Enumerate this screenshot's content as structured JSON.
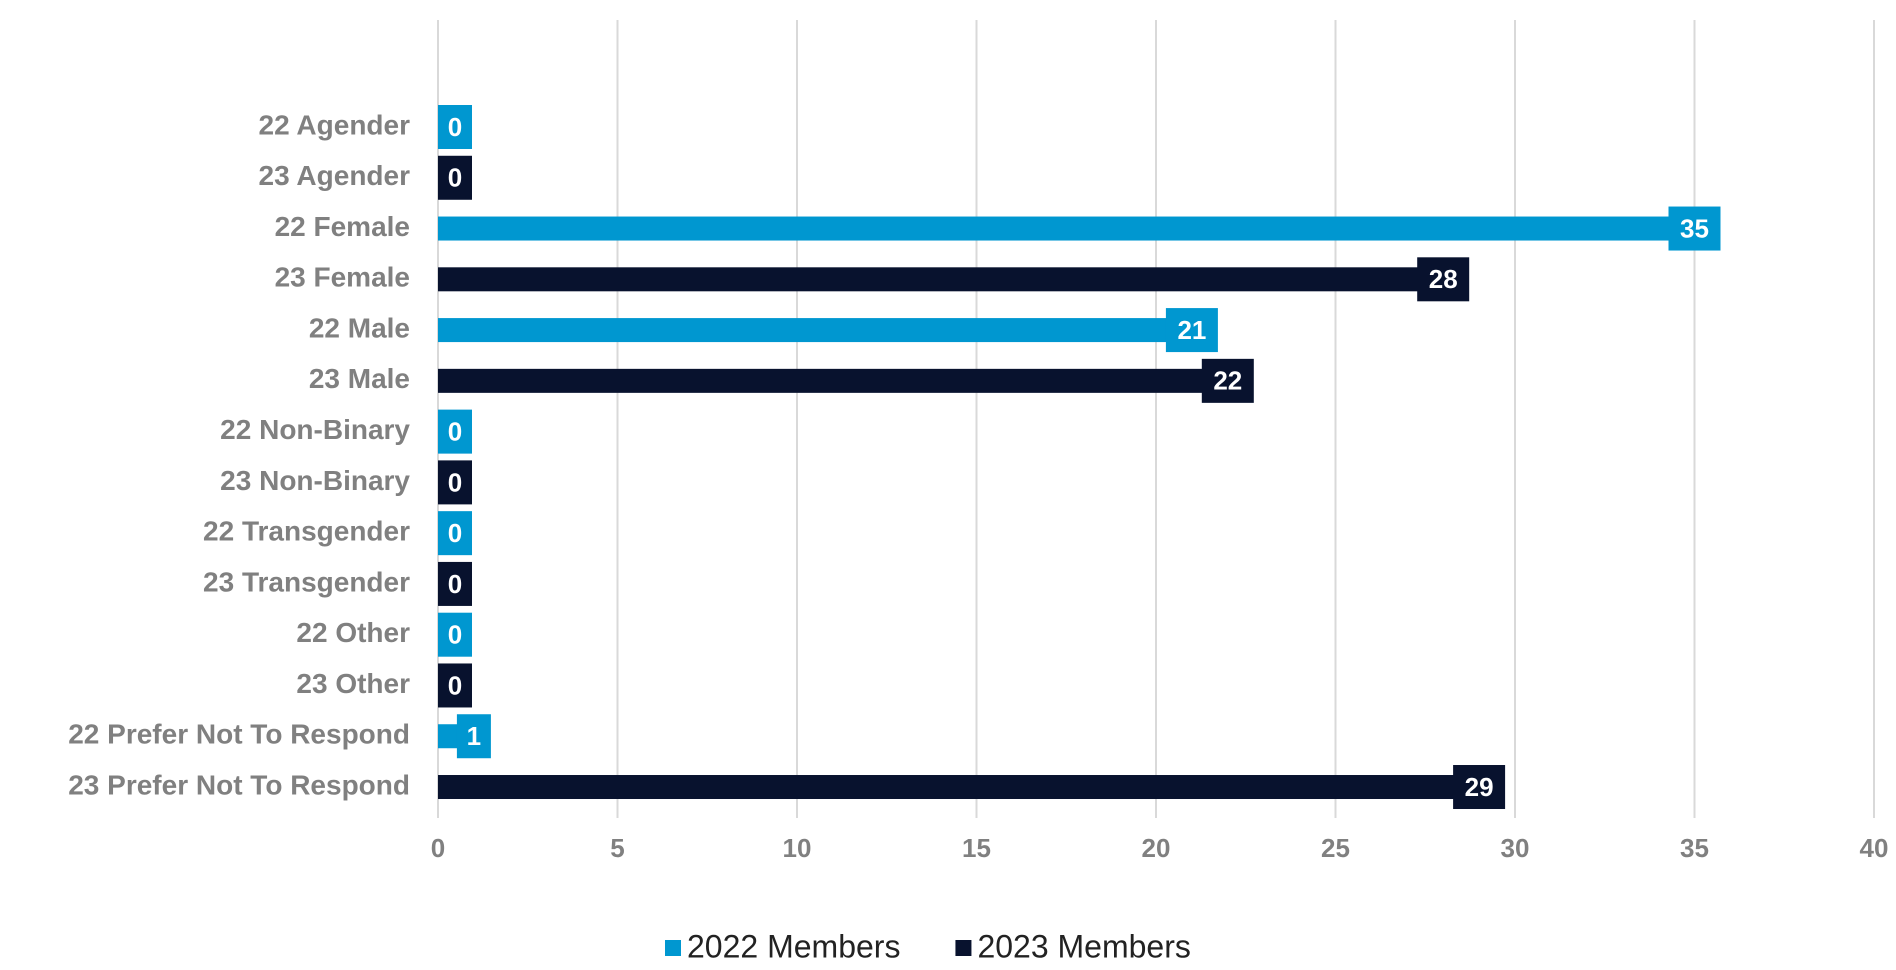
{
  "chart_data": {
    "type": "bar",
    "orientation": "horizontal",
    "categories": [
      "22 Agender",
      "23 Agender",
      "22 Female",
      "23 Female",
      "22 Male",
      "23 Male",
      "22 Non-Binary",
      "23 Non-Binary",
      "22 Transgender",
      "23 Transgender",
      "22 Other",
      "23 Other",
      "22 Prefer Not To Respond",
      "23 Prefer Not To Respond"
    ],
    "series": [
      {
        "name": "2022 Members",
        "color": "#0097d0",
        "values": [
          0,
          null,
          35,
          null,
          21,
          null,
          0,
          null,
          0,
          null,
          0,
          null,
          1,
          null
        ]
      },
      {
        "name": "2023 Members",
        "color": "#08122e",
        "values": [
          null,
          0,
          null,
          28,
          null,
          22,
          null,
          0,
          null,
          0,
          null,
          0,
          null,
          29
        ]
      }
    ],
    "xlim": [
      0,
      40
    ],
    "xticks": [
      0,
      5,
      10,
      15,
      20,
      25,
      30,
      35,
      40
    ],
    "grid": true,
    "legend": "bottom"
  }
}
